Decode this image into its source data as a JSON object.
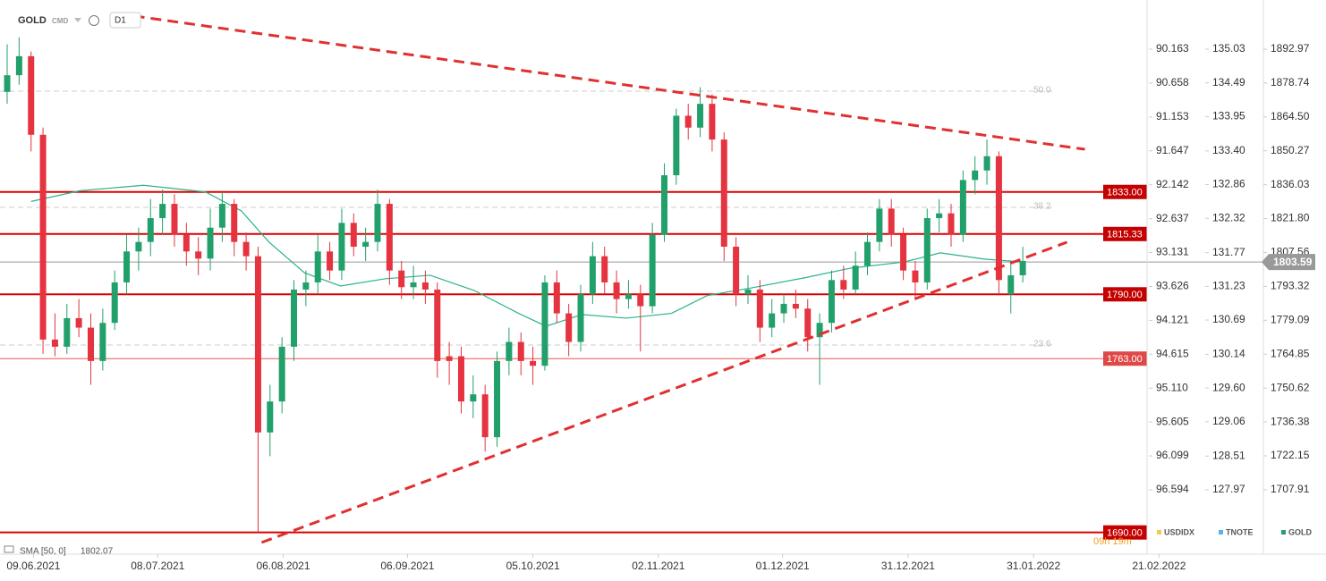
{
  "chart_data": {
    "type": "candlestick",
    "symbol": "GOLD",
    "market": "CMD",
    "interval": "D1",
    "xlim": [
      -0.6,
      95.4
    ],
    "ylim": [
      1686.5,
      1913.6
    ],
    "xticks": [
      {
        "value": 2.2,
        "label": "09.06.2021"
      },
      {
        "value": 12.6,
        "label": "08.07.2021"
      },
      {
        "value": 23.1,
        "label": "06.08.2021"
      },
      {
        "value": 33.5,
        "label": "06.09.2021"
      },
      {
        "value": 44.0,
        "label": "05.10.2021"
      },
      {
        "value": 54.5,
        "label": "02.11.2021"
      },
      {
        "value": 64.9,
        "label": "01.12.2021"
      },
      {
        "value": 75.4,
        "label": "31.12.2021"
      },
      {
        "value": 85.9,
        "label": "31.01.2022"
      },
      {
        "value": 96.4,
        "label": "21.02.2022"
      }
    ],
    "axes": [
      {
        "name": "USDIDX",
        "color": "#f2c94c",
        "ylim": [
          97.338,
          89.445
        ],
        "yticks": [
          90.163,
          90.658,
          91.153,
          91.647,
          92.142,
          92.637,
          93.131,
          93.626,
          94.121,
          94.615,
          {
            "value": 95.11,
            "label": "95.110"
          },
          95.605,
          96.099,
          96.594
        ]
      },
      {
        "name": "TNOTE",
        "color": "#56b4e9",
        "ylim": [
          127.153,
          135.818
        ],
        "yticks": [
          135.03,
          134.49,
          133.95,
          {
            "value": 133.4,
            "label": "133.40"
          },
          132.86,
          132.32,
          131.77,
          131.23,
          130.69,
          130.14,
          {
            "value": 129.6,
            "label": "129.60"
          },
          129.06,
          128.51,
          127.97
        ]
      },
      {
        "name": "GOLD",
        "color": "#22a06b",
        "ylim": [
          1686.5,
          1913.6
        ],
        "yticks": [
          1892.97,
          1878.74,
          {
            "value": 1864.5,
            "label": "1864.50"
          },
          1850.27,
          1836.03,
          {
            "value": 1821.8,
            "label": "1821.80"
          },
          1807.56,
          1793.32,
          1779.09,
          1764.85,
          1750.62,
          1736.38,
          1722.15,
          1707.91
        ]
      }
    ],
    "up_color": "#22a06b",
    "down_color": "#e5333f",
    "candles": [
      [
        1875,
        1895,
        1870,
        1882
      ],
      [
        1882,
        1898,
        1878,
        1890
      ],
      [
        1890,
        1892,
        1850,
        1857
      ],
      [
        1857,
        1860,
        1765,
        1771
      ],
      [
        1771,
        1782,
        1764,
        1768
      ],
      [
        1768,
        1786,
        1765,
        1780
      ],
      [
        1780,
        1788,
        1772,
        1776
      ],
      [
        1776,
        1782,
        1752,
        1762
      ],
      [
        1762,
        1784,
        1758,
        1778
      ],
      [
        1778,
        1800,
        1775,
        1795
      ],
      [
        1795,
        1815,
        1790,
        1808
      ],
      [
        1808,
        1818,
        1800,
        1812
      ],
      [
        1812,
        1830,
        1806,
        1822
      ],
      [
        1822,
        1834,
        1815,
        1828
      ],
      [
        1828,
        1832,
        1810,
        1815
      ],
      [
        1815,
        1820,
        1802,
        1808
      ],
      [
        1808,
        1814,
        1798,
        1805
      ],
      [
        1805,
        1826,
        1800,
        1818
      ],
      [
        1818,
        1833,
        1812,
        1828
      ],
      [
        1828,
        1830,
        1806,
        1812
      ],
      [
        1812,
        1816,
        1800,
        1806
      ],
      [
        1806,
        1810,
        1690,
        1732
      ],
      [
        1732,
        1752,
        1722,
        1745
      ],
      [
        1745,
        1772,
        1740,
        1768
      ],
      [
        1768,
        1796,
        1762,
        1792
      ],
      [
        1792,
        1800,
        1785,
        1795
      ],
      [
        1795,
        1815,
        1790,
        1808
      ],
      [
        1808,
        1812,
        1796,
        1800
      ],
      [
        1800,
        1826,
        1796,
        1820
      ],
      [
        1820,
        1824,
        1806,
        1810
      ],
      [
        1810,
        1818,
        1804,
        1812
      ],
      [
        1812,
        1834,
        1808,
        1828
      ],
      [
        1828,
        1830,
        1794,
        1800
      ],
      [
        1800,
        1804,
        1788,
        1793
      ],
      [
        1793,
        1802,
        1788,
        1795
      ],
      [
        1795,
        1800,
        1786,
        1792
      ],
      [
        1792,
        1795,
        1755,
        1762
      ],
      [
        1764,
        1770,
        1752,
        1762
      ],
      [
        1764,
        1768,
        1740,
        1745
      ],
      [
        1745,
        1756,
        1738,
        1748
      ],
      [
        1748,
        1752,
        1724,
        1730
      ],
      [
        1730,
        1766,
        1726,
        1762
      ],
      [
        1762,
        1776,
        1756,
        1770
      ],
      [
        1770,
        1774,
        1756,
        1762
      ],
      [
        1762,
        1768,
        1752,
        1760
      ],
      [
        1760,
        1798,
        1758,
        1795
      ],
      [
        1795,
        1800,
        1778,
        1782
      ],
      [
        1782,
        1786,
        1764,
        1770
      ],
      [
        1770,
        1794,
        1766,
        1790
      ],
      [
        1790,
        1812,
        1786,
        1806
      ],
      [
        1806,
        1810,
        1790,
        1795
      ],
      [
        1795,
        1800,
        1782,
        1788
      ],
      [
        1788,
        1796,
        1784,
        1790
      ],
      [
        1790,
        1794,
        1766,
        1785
      ],
      [
        1785,
        1820,
        1782,
        1815
      ],
      [
        1815,
        1845,
        1812,
        1840
      ],
      [
        1840,
        1868,
        1836,
        1865
      ],
      [
        1865,
        1870,
        1855,
        1860
      ],
      [
        1860,
        1877,
        1856,
        1870
      ],
      [
        1870,
        1874,
        1850,
        1855
      ],
      [
        1855,
        1858,
        1804,
        1810
      ],
      [
        1810,
        1814,
        1785,
        1790
      ],
      [
        1790,
        1798,
        1786,
        1792
      ],
      [
        1792,
        1796,
        1770,
        1776
      ],
      [
        1776,
        1788,
        1772,
        1782
      ],
      [
        1782,
        1790,
        1778,
        1786
      ],
      [
        1786,
        1792,
        1780,
        1784
      ],
      [
        1784,
        1788,
        1766,
        1772
      ],
      [
        1772,
        1782,
        1752,
        1778
      ],
      [
        1778,
        1800,
        1774,
        1796
      ],
      [
        1796,
        1802,
        1788,
        1792
      ],
      [
        1792,
        1808,
        1790,
        1802
      ],
      [
        1802,
        1816,
        1798,
        1812
      ],
      [
        1812,
        1830,
        1808,
        1826
      ],
      [
        1826,
        1830,
        1810,
        1815
      ],
      [
        1815,
        1818,
        1796,
        1800
      ],
      [
        1800,
        1804,
        1788,
        1795
      ],
      [
        1795,
        1826,
        1792,
        1822
      ],
      [
        1822,
        1830,
        1816,
        1824
      ],
      [
        1824,
        1828,
        1810,
        1815
      ],
      [
        1815,
        1842,
        1812,
        1838
      ],
      [
        1838,
        1848,
        1832,
        1842
      ],
      [
        1842,
        1855,
        1836,
        1848
      ],
      [
        1848,
        1850,
        1790,
        1796
      ],
      [
        1790,
        1804,
        1782,
        1798
      ],
      [
        1798,
        1810,
        1795,
        1804
      ]
    ],
    "sma": {
      "name": "SMA [50, 0]",
      "last": 1802.07,
      "color": "#2bb38a",
      "x": [
        2.0,
        6.1,
        11.4,
        16.6,
        19.6,
        21.9,
        24.9,
        27.9,
        31.6,
        35.4,
        39.1,
        42.8,
        45.1,
        48.1,
        51.8,
        55.6,
        58.6,
        62.3,
        66.8,
        70.6,
        75.1,
        78.1,
        81.8,
        85.0
      ],
      "values": [
        1829,
        1833.5,
        1835.8,
        1833,
        1825,
        1812,
        1799,
        1793.5,
        1796.5,
        1798,
        1791.6,
        1782,
        1776.6,
        1781.5,
        1780,
        1782,
        1789.5,
        1792.7,
        1797,
        1801,
        1803.6,
        1807.4,
        1804.8,
        1803.6
      ]
    },
    "levels": [
      {
        "value": 1833,
        "label": "1833.00"
      },
      1815.33,
      {
        "value": 1790,
        "label": "1790.00"
      },
      {
        "value": 1763,
        "label": "1763.00"
      },
      {
        "value": 1690,
        "label": "1690.00"
      }
    ],
    "current_price": 1803.59,
    "fib_levels": [
      {
        "label": "50.0",
        "value": 1875.3
      },
      {
        "label": "38.2",
        "value": 1826.5
      },
      {
        "label": "23.6",
        "value": 1768.7
      }
    ],
    "trendlines": [
      {
        "points": [
          [
            10.6,
            1906.9
          ],
          [
            90.2,
            1850.9
          ]
        ]
      },
      {
        "points": [
          [
            21.3,
            1685.8
          ],
          [
            88.7,
            1811.9
          ]
        ]
      }
    ],
    "timer": "09h 19m"
  }
}
